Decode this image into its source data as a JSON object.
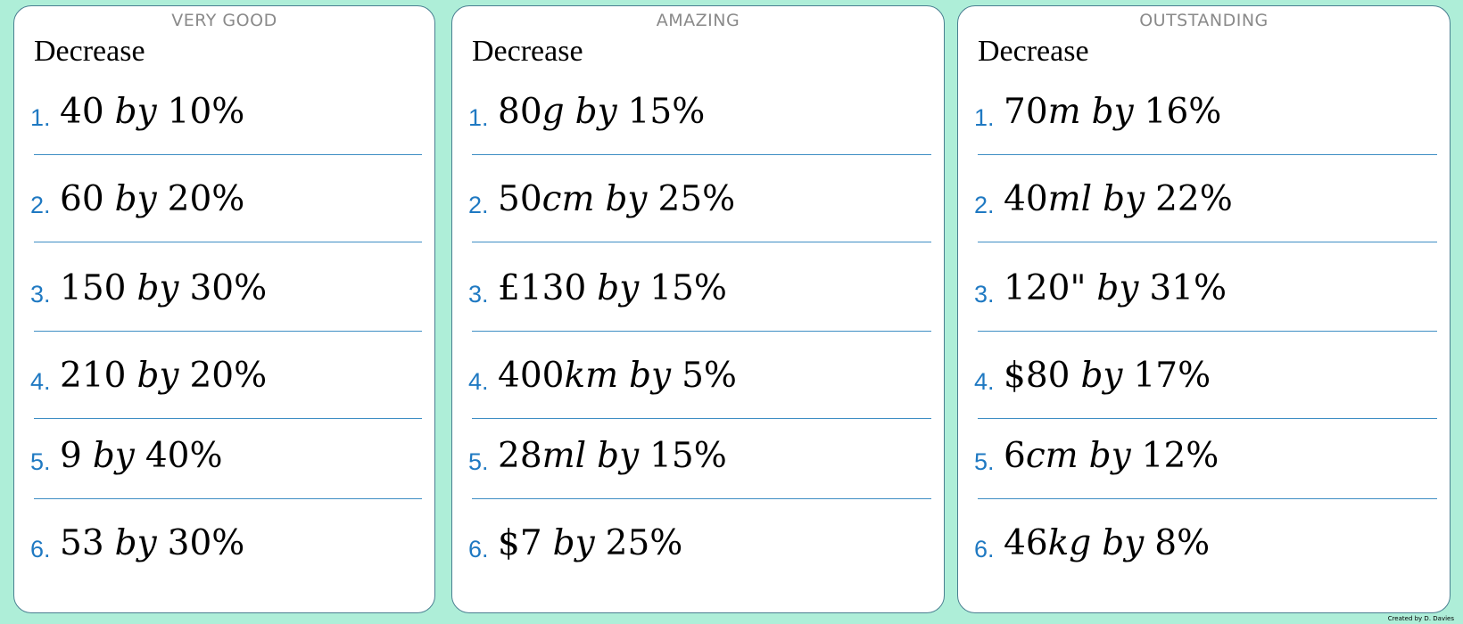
{
  "credit": "Created by D. Davies",
  "panels": [
    {
      "level": "VERY GOOD",
      "heading": "Decrease",
      "questions": [
        {
          "num": "1.",
          "amount": "40",
          "unit": "",
          "percent": "10%"
        },
        {
          "num": "2.",
          "amount": "60",
          "unit": "",
          "percent": "20%"
        },
        {
          "num": "3.",
          "amount": "150",
          "unit": "",
          "percent": "30%"
        },
        {
          "num": "4.",
          "amount": "210",
          "unit": "",
          "percent": "20%"
        },
        {
          "num": "5.",
          "amount": "9",
          "unit": "",
          "percent": "40%"
        },
        {
          "num": "6.",
          "amount": "53",
          "unit": "",
          "percent": "30%"
        }
      ]
    },
    {
      "level": "AMAZING",
      "heading": "Decrease",
      "questions": [
        {
          "num": "1.",
          "amount": "80",
          "unit": "g",
          "percent": "15%"
        },
        {
          "num": "2.",
          "amount": "50",
          "unit": "cm",
          "percent": "25%"
        },
        {
          "num": "3.",
          "amount": "£130",
          "unit": "",
          "percent": "15%"
        },
        {
          "num": "4.",
          "amount": "400",
          "unit": "km",
          "percent": "5%"
        },
        {
          "num": "5.",
          "amount": "28",
          "unit": "ml",
          "percent": "15%"
        },
        {
          "num": "6.",
          "amount": "$7",
          "unit": "",
          "percent": "25%"
        }
      ]
    },
    {
      "level": "OUTSTANDING",
      "heading": "Decrease",
      "questions": [
        {
          "num": "1.",
          "amount": "70",
          "unit": "m",
          "percent": "16%"
        },
        {
          "num": "2.",
          "amount": "40",
          "unit": "ml",
          "percent": "22%"
        },
        {
          "num": "3.",
          "amount": "120\"",
          "unit": "",
          "percent": "31%"
        },
        {
          "num": "4.",
          "amount": "$80",
          "unit": "",
          "percent": "17%"
        },
        {
          "num": "5.",
          "amount": "6",
          "unit": "cm",
          "percent": "12%"
        },
        {
          "num": "6.",
          "amount": "46",
          "unit": "kg",
          "percent": "8%"
        }
      ]
    }
  ]
}
